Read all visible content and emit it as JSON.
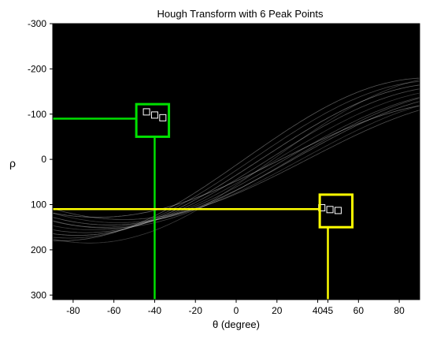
{
  "chart_data": {
    "type": "heatmap",
    "title": "Hough Transform with 6 Peak Points",
    "xlabel": "θ (degree)",
    "ylabel": "ρ",
    "xlim": [
      -90,
      90
    ],
    "ylim": [
      -300,
      310
    ],
    "y_reversed": true,
    "x_ticks": [
      -80,
      -60,
      -40,
      -20,
      0,
      20,
      40,
      45,
      60,
      80
    ],
    "y_ticks": [
      -300,
      -200,
      -100,
      0,
      100,
      200,
      300
    ],
    "background_color": "#000000",
    "curve_color": "#d8d8d8",
    "sinusoid_curves": [
      {
        "r": 156,
        "phi": -70
      },
      {
        "r": 150,
        "phi": -66
      },
      {
        "r": 162,
        "phi": -74
      },
      {
        "r": 145,
        "phi": -62
      },
      {
        "r": 168,
        "phi": -78
      },
      {
        "r": 140,
        "phi": -58
      },
      {
        "r": 174,
        "phi": -82
      },
      {
        "r": 133,
        "phi": -55
      },
      {
        "r": 180,
        "phi": -86
      },
      {
        "r": 128,
        "phi": -68
      },
      {
        "r": 185,
        "phi": -72
      },
      {
        "r": 152,
        "phi": -63
      }
    ],
    "peaks": [
      {
        "theta": -44,
        "rho": -105
      },
      {
        "theta": -40,
        "rho": -98
      },
      {
        "theta": -36,
        "rho": -92
      },
      {
        "theta": 42,
        "rho": 107
      },
      {
        "theta": 46,
        "rho": 111
      },
      {
        "theta": 50,
        "rho": 113
      }
    ],
    "highlights": [
      {
        "theta_range": [
          -49,
          -33
        ],
        "rho_range": [
          -122,
          -50
        ],
        "guide_theta": -40,
        "guide_rho": -90,
        "color": "#00e000"
      },
      {
        "theta_range": [
          41,
          57
        ],
        "rho_range": [
          78,
          150
        ],
        "guide_theta": 45,
        "guide_rho": 110,
        "color": "#ffff00"
      }
    ]
  }
}
